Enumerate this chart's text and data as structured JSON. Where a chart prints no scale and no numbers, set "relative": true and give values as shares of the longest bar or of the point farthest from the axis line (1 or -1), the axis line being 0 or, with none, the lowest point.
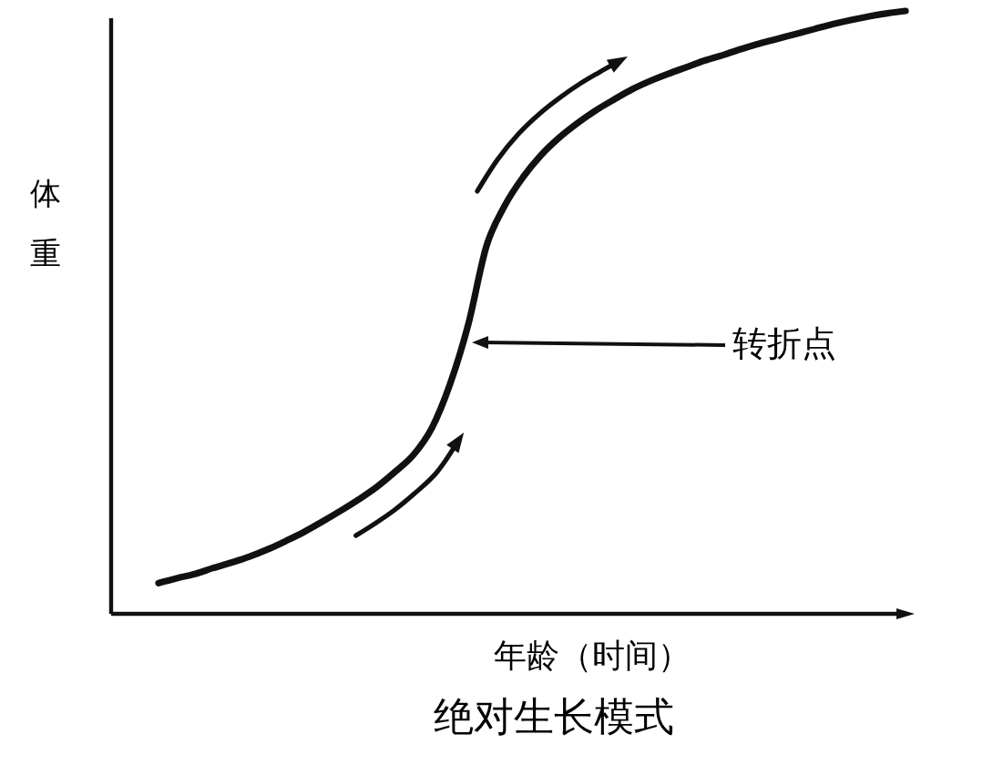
{
  "chart_data": {
    "type": "line",
    "title": "绝对生长模式",
    "xlabel": "年龄（时间）",
    "ylabel": "体重",
    "relative": true,
    "color": "#111111",
    "categories": [
      null,
      null,
      null,
      null,
      null,
      null,
      null,
      null,
      null,
      null,
      null,
      null,
      null,
      null,
      null,
      null,
      null,
      null,
      null,
      null,
      null,
      null,
      null,
      null,
      null,
      null,
      null,
      null,
      null,
      null,
      null,
      null,
      null,
      null,
      null,
      null,
      null,
      null,
      null,
      null,
      null,
      null
    ],
    "values": [
      0.051,
      0.059,
      0.066,
      0.076,
      0.085,
      0.095,
      0.107,
      0.121,
      0.136,
      0.153,
      0.171,
      0.19,
      0.211,
      0.236,
      0.264,
      0.308,
      0.381,
      0.48,
      0.61,
      0.677,
      0.724,
      0.761,
      0.79,
      0.814,
      0.835,
      0.853,
      0.87,
      0.884,
      0.896,
      0.907,
      0.918,
      0.927,
      0.937,
      0.946,
      0.954,
      0.962,
      0.97,
      0.978,
      0.985,
      0.991,
      0.996,
      1.0
    ],
    "annotations": [
      "转折点"
    ]
  }
}
